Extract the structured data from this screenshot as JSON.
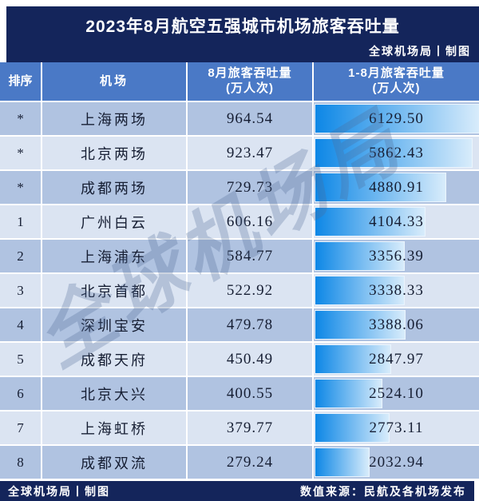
{
  "title": "2023年8月航空五强城市机场旅客吞吐量",
  "credit": "全球机场局丨制图",
  "watermark": "全球机场局",
  "header": {
    "rank": "排序",
    "airport": "机场",
    "aug": "8月旅客吞吐量",
    "ytd": "1-8月旅客吞吐量",
    "unit": "(万人次)"
  },
  "rows": [
    {
      "rank": "*",
      "airport": "上海两场",
      "aug": "964.54",
      "ytd": "6129.50"
    },
    {
      "rank": "*",
      "airport": "北京两场",
      "aug": "923.47",
      "ytd": "5862.43"
    },
    {
      "rank": "*",
      "airport": "成都两场",
      "aug": "729.73",
      "ytd": "4880.91"
    },
    {
      "rank": "1",
      "airport": "广州白云",
      "aug": "606.16",
      "ytd": "4104.33"
    },
    {
      "rank": "2",
      "airport": "上海浦东",
      "aug": "584.77",
      "ytd": "3356.39"
    },
    {
      "rank": "3",
      "airport": "北京首都",
      "aug": "522.92",
      "ytd": "3338.33"
    },
    {
      "rank": "4",
      "airport": "深圳宝安",
      "aug": "479.78",
      "ytd": "3388.06"
    },
    {
      "rank": "5",
      "airport": "成都天府",
      "aug": "450.49",
      "ytd": "2847.97"
    },
    {
      "rank": "6",
      "airport": "北京大兴",
      "aug": "400.55",
      "ytd": "2524.10"
    },
    {
      "rank": "7",
      "airport": "上海虹桥",
      "aug": "379.77",
      "ytd": "2773.11"
    },
    {
      "rank": "8",
      "airport": "成都双流",
      "aug": "279.24",
      "ytd": "2032.94"
    }
  ],
  "footer": {
    "left": "全球机场局丨制图",
    "right": "数值来源：民航及各机场发布"
  },
  "colors": {
    "navy": "#14255b",
    "header_blue": "#4a79c6",
    "row_dark": "#b0c3e1",
    "row_light": "#dbe4f2",
    "bar_start": "#0d87e6",
    "bar_end": "#d8ecfb",
    "bar_border": "#eaf4fd",
    "text": "#161e33",
    "watermark_color": "#4f6a96"
  },
  "chart_data": {
    "type": "table",
    "title": "2023年8月航空五强城市机场旅客吞吐量",
    "columns": [
      "排序",
      "机场",
      "8月旅客吞吐量(万人次)",
      "1-8月旅客吞吐量(万人次)"
    ],
    "rows": [
      [
        "*",
        "上海两场",
        964.54,
        6129.5
      ],
      [
        "*",
        "北京两场",
        923.47,
        5862.43
      ],
      [
        "*",
        "成都两场",
        729.73,
        4880.91
      ],
      [
        "1",
        "广州白云",
        606.16,
        4104.33
      ],
      [
        "2",
        "上海浦东",
        584.77,
        3356.39
      ],
      [
        "3",
        "北京首都",
        522.92,
        3338.33
      ],
      [
        "4",
        "深圳宝安",
        479.78,
        3388.06
      ],
      [
        "5",
        "成都天府",
        450.49,
        2847.97
      ],
      [
        "6",
        "北京大兴",
        400.55,
        2524.1
      ],
      [
        "7",
        "上海虹桥",
        379.77,
        2773.11
      ],
      [
        "8",
        "成都双流",
        279.24,
        2032.94
      ]
    ],
    "bar_column": "1-8月旅客吞吐量(万人次)",
    "bar_max": 6129.5,
    "bar_style": "horizontal gradient data-bars embedded in last column, width proportional to value",
    "legend_position": "none",
    "grid": false
  }
}
